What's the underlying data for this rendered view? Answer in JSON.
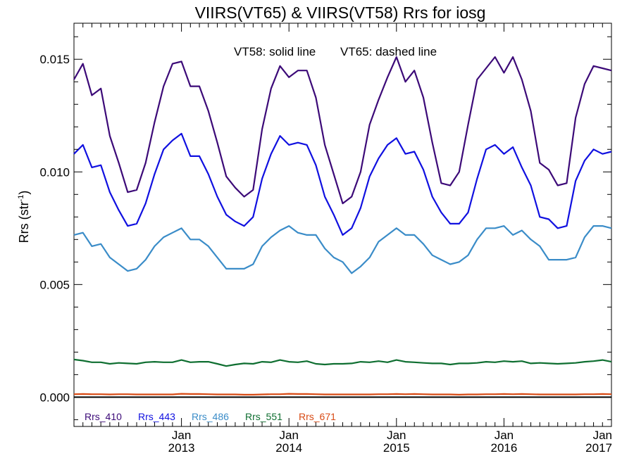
{
  "chart_data": {
    "type": "line",
    "title": "VIIRS(VT65) & VIIRS(VT58)  Rrs for iosg",
    "annotation_solid": "VT58: solid line",
    "annotation_dashed": "VT65: dashed line",
    "ylabel": "Rrs (str",
    "ylabel_sup": "-1",
    "ylabel_close": ")",
    "ylim": [
      -0.0013,
      0.0166
    ],
    "xlim": [
      "2012-01",
      "2017-01"
    ],
    "yticks": [
      "0.000",
      "0.005",
      "0.010",
      "0.015"
    ],
    "ytick_values": [
      0.0,
      0.005,
      0.01,
      0.015
    ],
    "xticks": [
      {
        "month": "Jan",
        "year": "2013",
        "x": "2013-01"
      },
      {
        "month": "Jan",
        "year": "2014",
        "x": "2014-01"
      },
      {
        "month": "Jan",
        "year": "2015",
        "x": "2015-01"
      },
      {
        "month": "Jan",
        "year": "2016",
        "x": "2016-01"
      },
      {
        "month": "Jan",
        "year": "2017",
        "x": "2017-01"
      }
    ],
    "zero_line": true,
    "grid": false,
    "legend_position": "bottom-left",
    "x": [
      "2012-01",
      "2012-02",
      "2012-03",
      "2012-04",
      "2012-05",
      "2012-06",
      "2012-07",
      "2012-08",
      "2012-09",
      "2012-10",
      "2012-11",
      "2012-12",
      "2013-01",
      "2013-02",
      "2013-03",
      "2013-04",
      "2013-05",
      "2013-06",
      "2013-07",
      "2013-08",
      "2013-09",
      "2013-10",
      "2013-11",
      "2013-12",
      "2014-01",
      "2014-02",
      "2014-03",
      "2014-04",
      "2014-05",
      "2014-06",
      "2014-07",
      "2014-08",
      "2014-09",
      "2014-10",
      "2014-11",
      "2014-12",
      "2015-01",
      "2015-02",
      "2015-03",
      "2015-04",
      "2015-05",
      "2015-06",
      "2015-07",
      "2015-08",
      "2015-09",
      "2015-10",
      "2015-11",
      "2015-12",
      "2016-01",
      "2016-02",
      "2016-03",
      "2016-04",
      "2016-05",
      "2016-06",
      "2016-07",
      "2016-08",
      "2016-09",
      "2016-10",
      "2016-11",
      "2016-12",
      "2017-01"
    ],
    "series": [
      {
        "name": "Rrs_410",
        "color": "#3c0a78",
        "values": [
          0.0141,
          0.0148,
          0.0134,
          0.0137,
          0.0116,
          0.0104,
          0.0091,
          0.0092,
          0.0104,
          0.0122,
          0.0138,
          0.0148,
          0.0149,
          0.0138,
          0.0138,
          0.0127,
          0.0113,
          0.0098,
          0.0093,
          0.0089,
          0.0092,
          0.0119,
          0.0137,
          0.0147,
          0.0142,
          0.0145,
          0.0145,
          0.0133,
          0.0112,
          0.0099,
          0.0086,
          0.0089,
          0.01,
          0.0121,
          0.0132,
          0.0142,
          0.0151,
          0.014,
          0.0145,
          0.0133,
          0.0113,
          0.0095,
          0.0094,
          0.01,
          0.0121,
          0.0141,
          0.0146,
          0.0151,
          0.0144,
          0.0151,
          0.0141,
          0.0127,
          0.0104,
          0.0101,
          0.0094,
          0.0095,
          0.0124,
          0.0139,
          0.0147,
          0.0146,
          0.0145
        ]
      },
      {
        "name": "Rrs_443",
        "color": "#1010e0",
        "values": [
          0.0108,
          0.0112,
          0.0102,
          0.0103,
          0.0091,
          0.0083,
          0.0076,
          0.0077,
          0.0086,
          0.0099,
          0.011,
          0.0114,
          0.0117,
          0.0107,
          0.0107,
          0.0099,
          0.0089,
          0.0081,
          0.0078,
          0.0076,
          0.008,
          0.0097,
          0.0108,
          0.0116,
          0.0112,
          0.0113,
          0.0112,
          0.0103,
          0.0089,
          0.0081,
          0.0072,
          0.0075,
          0.0084,
          0.0098,
          0.0106,
          0.0112,
          0.0115,
          0.0108,
          0.0109,
          0.0101,
          0.0089,
          0.0082,
          0.0077,
          0.0077,
          0.0082,
          0.0097,
          0.011,
          0.0112,
          0.0108,
          0.0111,
          0.0102,
          0.0094,
          0.008,
          0.0079,
          0.0075,
          0.0076,
          0.0096,
          0.0105,
          0.011,
          0.0108,
          0.0109
        ]
      },
      {
        "name": "Rrs_486",
        "color": "#3a8cc8",
        "values": [
          0.0072,
          0.0073,
          0.0067,
          0.0068,
          0.0062,
          0.0059,
          0.0056,
          0.0057,
          0.0061,
          0.0067,
          0.0071,
          0.0073,
          0.0075,
          0.007,
          0.007,
          0.0067,
          0.0062,
          0.0057,
          0.0057,
          0.0057,
          0.0059,
          0.0067,
          0.0071,
          0.0074,
          0.0076,
          0.0073,
          0.0072,
          0.0072,
          0.0066,
          0.0062,
          0.006,
          0.0055,
          0.0058,
          0.0062,
          0.0069,
          0.0072,
          0.0075,
          0.0072,
          0.0072,
          0.0068,
          0.0063,
          0.0061,
          0.0059,
          0.006,
          0.0063,
          0.007,
          0.0075,
          0.0075,
          0.0076,
          0.0072,
          0.0074,
          0.007,
          0.0067,
          0.0061,
          0.0061,
          0.0061,
          0.0062,
          0.0071,
          0.0076,
          0.0076,
          0.0075
        ]
      },
      {
        "name": "Rrs_551",
        "color": "#0e6e30",
        "values": [
          0.00167,
          0.00162,
          0.00155,
          0.00155,
          0.00148,
          0.00152,
          0.0015,
          0.00148,
          0.00155,
          0.00157,
          0.00155,
          0.00155,
          0.00165,
          0.00155,
          0.00157,
          0.00157,
          0.00148,
          0.00138,
          0.00145,
          0.0015,
          0.00148,
          0.00157,
          0.00155,
          0.00165,
          0.00157,
          0.00155,
          0.0016,
          0.00148,
          0.00145,
          0.00148,
          0.00148,
          0.0015,
          0.00157,
          0.00155,
          0.0016,
          0.00155,
          0.00165,
          0.00157,
          0.00155,
          0.00152,
          0.0015,
          0.0015,
          0.00145,
          0.0015,
          0.0015,
          0.00152,
          0.00157,
          0.00155,
          0.0016,
          0.00157,
          0.0016,
          0.0015,
          0.00152,
          0.0015,
          0.00148,
          0.0015,
          0.00152,
          0.00157,
          0.0016,
          0.00165,
          0.00157
        ]
      },
      {
        "name": "Rrs_671",
        "color": "#d84a14",
        "values": [
          0.00013,
          0.00014,
          0.00013,
          0.00013,
          0.00012,
          0.00013,
          0.00013,
          0.00012,
          0.00012,
          0.00012,
          0.00012,
          0.00012,
          0.00015,
          0.00014,
          0.00014,
          0.00013,
          0.00012,
          0.00012,
          0.00012,
          0.00011,
          0.00011,
          0.00012,
          0.00013,
          0.00013,
          0.00015,
          0.00014,
          0.00014,
          0.00013,
          0.00012,
          0.00012,
          0.00012,
          0.00012,
          0.00012,
          0.00012,
          0.00013,
          0.00013,
          0.00014,
          0.00013,
          0.00014,
          0.00013,
          0.00012,
          0.00012,
          0.00012,
          0.00011,
          0.00012,
          0.00012,
          0.00013,
          0.00013,
          0.00014,
          0.00013,
          0.00014,
          0.00013,
          0.00012,
          0.00012,
          0.00012,
          0.00012,
          0.00012,
          0.00013,
          0.00013,
          0.00014,
          0.00013
        ]
      }
    ]
  }
}
